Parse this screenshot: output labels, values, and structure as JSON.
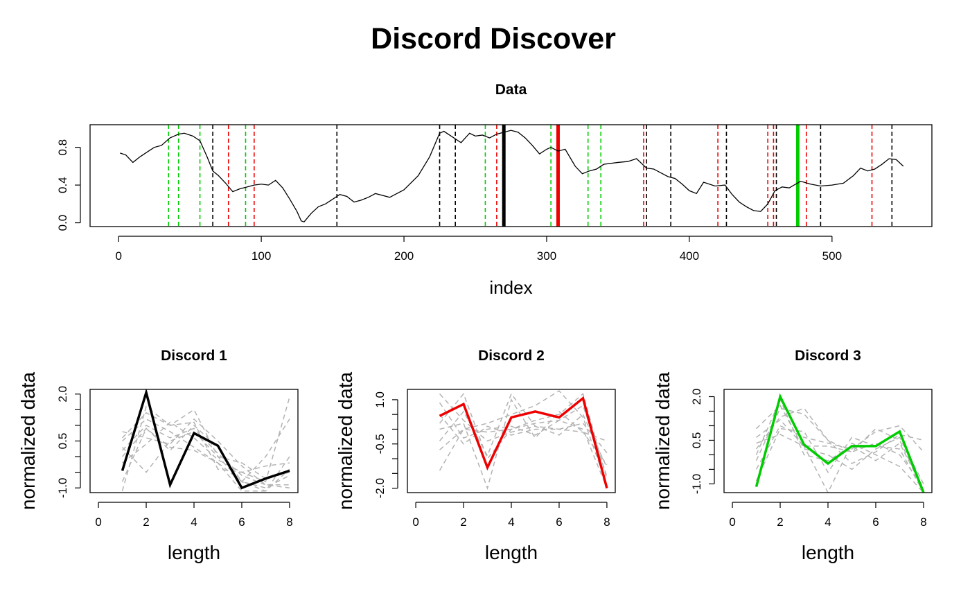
{
  "title": "Discord Discover",
  "chart_data": [
    {
      "type": "line",
      "title": "Data",
      "xlabel": "index",
      "ylabel": "",
      "xlim": [
        -20,
        570
      ],
      "ylim": [
        -0.04,
        1.04
      ],
      "xticks": [
        0,
        100,
        200,
        300,
        400,
        500
      ],
      "yticks": [
        0.0,
        0.4,
        0.8
      ],
      "ytick_labels": [
        "0.0",
        "0.4",
        "0.8"
      ],
      "series": [
        {
          "color": "#000000",
          "x": [
            1,
            5,
            10,
            15,
            20,
            25,
            30,
            36,
            42,
            46,
            52,
            57,
            62,
            66,
            70,
            75,
            80,
            85,
            90,
            95,
            100,
            105,
            110,
            115,
            120,
            125,
            128,
            130,
            135,
            140,
            145,
            150,
            155,
            160,
            165,
            170,
            175,
            180,
            190,
            200,
            210,
            218,
            225,
            228,
            235,
            240,
            246,
            250,
            255,
            260,
            265,
            270,
            275,
            280,
            285,
            290,
            295,
            300,
            303,
            308,
            313,
            320,
            325,
            330,
            335,
            340,
            350,
            357,
            363,
            370,
            375,
            380,
            385,
            390,
            395,
            400,
            405,
            410,
            418,
            425,
            430,
            435,
            440,
            445,
            450,
            455,
            460,
            465,
            470,
            478,
            485,
            492,
            500,
            508,
            515,
            520,
            525,
            530,
            535,
            540,
            545,
            550
          ],
          "y": [
            0.74,
            0.72,
            0.64,
            0.7,
            0.75,
            0.8,
            0.82,
            0.9,
            0.94,
            0.95,
            0.92,
            0.87,
            0.7,
            0.55,
            0.5,
            0.42,
            0.33,
            0.36,
            0.38,
            0.4,
            0.41,
            0.4,
            0.45,
            0.37,
            0.25,
            0.12,
            0.02,
            0.01,
            0.1,
            0.17,
            0.2,
            0.25,
            0.3,
            0.28,
            0.22,
            0.24,
            0.27,
            0.31,
            0.27,
            0.35,
            0.5,
            0.7,
            0.95,
            0.97,
            0.9,
            0.85,
            0.95,
            0.92,
            0.93,
            0.9,
            0.94,
            0.96,
            0.98,
            0.96,
            0.9,
            0.82,
            0.73,
            0.78,
            0.8,
            0.76,
            0.78,
            0.6,
            0.52,
            0.55,
            0.57,
            0.62,
            0.64,
            0.65,
            0.68,
            0.58,
            0.57,
            0.53,
            0.49,
            0.47,
            0.41,
            0.34,
            0.31,
            0.43,
            0.39,
            0.4,
            0.3,
            0.22,
            0.17,
            0.13,
            0.12,
            0.2,
            0.34,
            0.38,
            0.37,
            0.44,
            0.41,
            0.39,
            0.4,
            0.42,
            0.5,
            0.58,
            0.55,
            0.57,
            0.62,
            0.68,
            0.67,
            0.6
          ]
        }
      ],
      "vlines": [
        {
          "x": 35,
          "color": "#00cc00",
          "style": "dashed"
        },
        {
          "x": 42,
          "color": "#00cc00",
          "style": "dashed"
        },
        {
          "x": 57,
          "color": "#00cc00",
          "style": "dashed"
        },
        {
          "x": 66,
          "color": "#000000",
          "style": "dashed"
        },
        {
          "x": 77,
          "color": "#ee0000",
          "style": "dashed"
        },
        {
          "x": 89,
          "color": "#00cc00",
          "style": "dashed"
        },
        {
          "x": 95,
          "color": "#ee0000",
          "style": "dashed"
        },
        {
          "x": 153,
          "color": "#000000",
          "style": "dashed"
        },
        {
          "x": 225,
          "color": "#000000",
          "style": "dashed"
        },
        {
          "x": 236,
          "color": "#000000",
          "style": "dashed"
        },
        {
          "x": 257,
          "color": "#00cc00",
          "style": "dashed"
        },
        {
          "x": 265,
          "color": "#ee0000",
          "style": "dashed"
        },
        {
          "x": 270,
          "color": "#000000",
          "style": "solid"
        },
        {
          "x": 303,
          "color": "#00cc00",
          "style": "dashed"
        },
        {
          "x": 308,
          "color": "#ee0000",
          "style": "solid"
        },
        {
          "x": 329,
          "color": "#00cc00",
          "style": "dashed"
        },
        {
          "x": 338,
          "color": "#00cc00",
          "style": "dashed"
        },
        {
          "x": 368,
          "color": "#ee0000",
          "style": "dashed"
        },
        {
          "x": 370,
          "color": "#000000",
          "style": "dashed"
        },
        {
          "x": 387,
          "color": "#000000",
          "style": "dashed"
        },
        {
          "x": 420,
          "color": "#ee0000",
          "style": "dashed"
        },
        {
          "x": 426,
          "color": "#000000",
          "style": "dashed"
        },
        {
          "x": 455,
          "color": "#ee0000",
          "style": "dashed"
        },
        {
          "x": 459,
          "color": "#ee0000",
          "style": "dashed"
        },
        {
          "x": 461,
          "color": "#000000",
          "style": "dashed"
        },
        {
          "x": 476,
          "color": "#00cc00",
          "style": "solid"
        },
        {
          "x": 482,
          "color": "#ee0000",
          "style": "dashed"
        },
        {
          "x": 492,
          "color": "#000000",
          "style": "dashed"
        },
        {
          "x": 528,
          "color": "#ee0000",
          "style": "dashed"
        },
        {
          "x": 542,
          "color": "#000000",
          "style": "dashed"
        }
      ]
    },
    {
      "type": "line",
      "title": "Discord 1",
      "xlabel": "length",
      "ylabel": "normalized data",
      "xlim": [
        -0.35,
        8.35
      ],
      "ylim": [
        -1.15,
        2.15
      ],
      "xticks": [
        0,
        2,
        4,
        6,
        8
      ],
      "yticks": [
        -1.0,
        -0.5,
        0.0,
        0.5,
        1.0,
        1.5,
        2.0
      ],
      "ytick_labels": [
        "-1.0",
        "",
        "",
        "0.5",
        "",
        "",
        "2.0"
      ],
      "x": [
        1,
        2,
        3,
        4,
        5,
        6,
        7,
        8
      ],
      "main_series": {
        "color": "#000000",
        "values": [
          -0.45,
          2.05,
          -0.9,
          0.75,
          0.35,
          -1.0,
          -0.7,
          -0.45
        ]
      },
      "neighbors": [
        [
          0.5,
          1.2,
          0.8,
          0.3,
          -0.2,
          -0.8,
          -1.0,
          -0.6
        ],
        [
          0.2,
          1.0,
          0.6,
          0.9,
          0.1,
          -0.6,
          -0.9,
          -1.0
        ],
        [
          -0.2,
          0.4,
          1.1,
          0.6,
          -0.1,
          -0.5,
          -0.8,
          1.9
        ],
        [
          0.8,
          0.6,
          0.4,
          1.2,
          0.5,
          -0.3,
          -0.9,
          -0.9
        ],
        [
          -0.8,
          0.9,
          0.2,
          1.0,
          0.3,
          -0.8,
          0.0,
          1.2
        ],
        [
          0.0,
          0.9,
          0.3,
          0.2,
          -0.2,
          -1.1,
          -1.1,
          0.0
        ],
        [
          0.3,
          -0.5,
          0.5,
          0.8,
          0.0,
          -0.2,
          -0.7,
          -0.5
        ],
        [
          0.6,
          1.4,
          1.0,
          1.5,
          0.0,
          -0.8,
          -1.1,
          -0.4
        ],
        [
          -1.1,
          1.6,
          1.0,
          1.1,
          -0.4,
          -0.5,
          -0.3,
          -0.2
        ]
      ]
    },
    {
      "type": "line",
      "title": "Discord 2",
      "xlabel": "length",
      "ylabel": "normalized data",
      "xlim": [
        -0.35,
        8.35
      ],
      "ylim": [
        -2.15,
        1.35
      ],
      "xticks": [
        0,
        2,
        4,
        6,
        8
      ],
      "yticks": [
        -2.0,
        -1.5,
        -1.0,
        -0.5,
        0.0,
        0.5,
        1.0
      ],
      "ytick_labels": [
        "-2.0",
        "",
        "",
        "-0.5",
        "",
        "",
        "1.0"
      ],
      "x": [
        1,
        2,
        3,
        4,
        5,
        6,
        7,
        8
      ],
      "main_series": {
        "color": "#ee0000",
        "values": [
          0.45,
          0.85,
          -1.3,
          0.4,
          0.6,
          0.4,
          1.05,
          -2.0
        ]
      },
      "neighbors": [
        [
          -1.4,
          0.0,
          -0.1,
          0.0,
          0.2,
          0.3,
          0.8,
          -1.6
        ],
        [
          1.2,
          0.3,
          -0.4,
          -0.1,
          0.1,
          -0.2,
          0.5,
          -1.3
        ],
        [
          0.2,
          1.2,
          -1.0,
          0.0,
          0.3,
          0.5,
          1.2,
          -1.7
        ],
        [
          0.5,
          -0.5,
          0.1,
          -0.2,
          0.0,
          0.0,
          0.2,
          -0.8
        ],
        [
          -0.4,
          0.6,
          -0.9,
          1.2,
          0.1,
          0.0,
          -0.1,
          -1.2
        ],
        [
          -0.7,
          0.0,
          0.2,
          0.5,
          0.8,
          1.3,
          0.4,
          -1.9
        ],
        [
          0.9,
          -0.3,
          0.0,
          0.1,
          -0.2,
          0.3,
          0.0,
          -2.0
        ],
        [
          0.0,
          0.2,
          -2.0,
          1.0,
          -0.3,
          0.6,
          -0.1,
          -0.4
        ]
      ]
    },
    {
      "type": "line",
      "title": "Discord 3",
      "xlabel": "length",
      "ylabel": "normalized data",
      "xlim": [
        -0.35,
        8.35
      ],
      "ylim": [
        -1.3,
        2.25
      ],
      "xticks": [
        0,
        2,
        4,
        6,
        8
      ],
      "yticks": [
        -1.0,
        -0.5,
        0.0,
        0.5,
        1.0,
        1.5,
        2.0
      ],
      "ytick_labels": [
        "-1.0",
        "",
        "",
        "0.5",
        "",
        "",
        "2.0"
      ],
      "x": [
        1,
        2,
        3,
        4,
        5,
        6,
        7,
        8
      ],
      "main_series": {
        "color": "#00cc00",
        "values": [
          -1.1,
          2.0,
          0.35,
          -0.3,
          0.3,
          0.3,
          0.8,
          -1.3
        ]
      },
      "neighbors": [
        [
          -0.2,
          1.6,
          1.4,
          0.5,
          -0.3,
          0.1,
          0.7,
          0.5
        ],
        [
          0.6,
          1.2,
          0.3,
          0.3,
          0.1,
          0.9,
          0.5,
          -1.2
        ],
        [
          -0.9,
          0.9,
          0.8,
          -0.6,
          0.6,
          0.3,
          0.2,
          -1.3
        ],
        [
          0.2,
          1.3,
          1.6,
          0.5,
          0.1,
          0.4,
          0.0,
          -1.1
        ],
        [
          0.9,
          1.7,
          0.2,
          0.0,
          -0.5,
          0.2,
          0.6,
          -1.0
        ],
        [
          -0.5,
          1.0,
          0.6,
          0.4,
          0.2,
          0.8,
          1.0,
          0.1
        ],
        [
          0.4,
          0.7,
          0.3,
          -1.3,
          0.4,
          0.0,
          -0.4,
          -1.3
        ],
        [
          0.0,
          1.9,
          0.0,
          -0.2,
          0.3,
          -0.2,
          0.4,
          -1.2
        ]
      ]
    }
  ]
}
